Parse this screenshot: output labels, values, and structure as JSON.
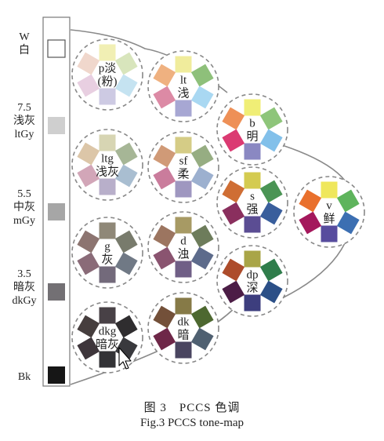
{
  "gray_scale": [
    {
      "id": "W",
      "lines": [
        "W",
        "白"
      ],
      "color": "#ffffff",
      "label_y": 48
    },
    {
      "id": "ltGy",
      "lines": [
        "7.5",
        "浅灰",
        "ltGy"
      ],
      "color": "#cfcfcf",
      "label_y": 146
    },
    {
      "id": "mGy",
      "lines": [
        "5.5",
        "中灰",
        "mGy"
      ],
      "color": "#a6a6a6",
      "label_y": 256
    },
    {
      "id": "dkGy",
      "lines": [
        "3.5",
        "暗灰",
        "dkGy"
      ],
      "color": "#737074",
      "label_y": 358
    },
    {
      "id": "Bk",
      "lines": [
        "Bk"
      ],
      "color": "#161616",
      "label_y": 472
    }
  ],
  "tones": [
    {
      "id": "p",
      "lines": [
        "p淡",
        "(粉)"
      ],
      "colors": [
        "#f1efb4",
        "#d8e5bc",
        "#c5e3f1",
        "#cdcae3",
        "#e8cfe1",
        "#f0d7cc"
      ]
    },
    {
      "id": "lt",
      "lines": [
        "lt",
        "浅"
      ],
      "colors": [
        "#f0ec9c",
        "#8ec07a",
        "#a9d8f2",
        "#a7a7d3",
        "#dc8aa5",
        "#efb180"
      ]
    },
    {
      "id": "b",
      "lines": [
        "b",
        "明"
      ],
      "colors": [
        "#f0ee76",
        "#8ec57a",
        "#82c0ea",
        "#8a88c2",
        "#db3a72",
        "#ee9057"
      ]
    },
    {
      "id": "ltg",
      "lines": [
        "ltg",
        "浅灰"
      ],
      "colors": [
        "#d7d5b3",
        "#a6b696",
        "#a9bed1",
        "#b8afca",
        "#d2a6b8",
        "#dcc6a8"
      ]
    },
    {
      "id": "sf",
      "lines": [
        "sf",
        "柔"
      ],
      "colors": [
        "#d5cc86",
        "#96ad82",
        "#9cb0cf",
        "#9f97c0",
        "#ca7c9c",
        "#d09a77"
      ]
    },
    {
      "id": "s",
      "lines": [
        "s",
        "强"
      ],
      "colors": [
        "#d4cb50",
        "#4a9454",
        "#395e9c",
        "#5b4d93",
        "#8a2f5e",
        "#cf6e34"
      ]
    },
    {
      "id": "v",
      "lines": [
        "v",
        "鲜"
      ],
      "colors": [
        "#efe75c",
        "#5eb45c",
        "#3c6fb2",
        "#574c9e",
        "#a4185c",
        "#e9702d"
      ]
    },
    {
      "id": "g",
      "lines": [
        "g",
        "灰"
      ],
      "colors": [
        "#8f8878",
        "#787b6c",
        "#707985",
        "#736a7b",
        "#8a6b78",
        "#8c7470"
      ]
    },
    {
      "id": "d",
      "lines": [
        "d",
        "浊"
      ],
      "colors": [
        "#a79a64",
        "#6d7c5b",
        "#5d6b8b",
        "#705f86",
        "#8a5470",
        "#9c7560"
      ]
    },
    {
      "id": "dp",
      "lines": [
        "dp",
        "深"
      ],
      "colors": [
        "#a9a547",
        "#2f7d4b",
        "#2b4f87",
        "#3d3e7e",
        "#4c1d46",
        "#ad4c2b"
      ]
    },
    {
      "id": "dkg",
      "lines": [
        "dkg",
        "暗灰"
      ],
      "colors": [
        "#484146",
        "#2f2d2f",
        "#39393d",
        "#333336",
        "#3e363b",
        "#463e3e"
      ]
    },
    {
      "id": "dk",
      "lines": [
        "dk",
        "暗"
      ],
      "colors": [
        "#867a47",
        "#4d6830",
        "#4f6071",
        "#4a4560",
        "#6e2748",
        "#735039"
      ]
    }
  ],
  "caption": {
    "cn": "图 3　PCCS 色调",
    "en": "Fig.3 PCCS tone-map"
  }
}
